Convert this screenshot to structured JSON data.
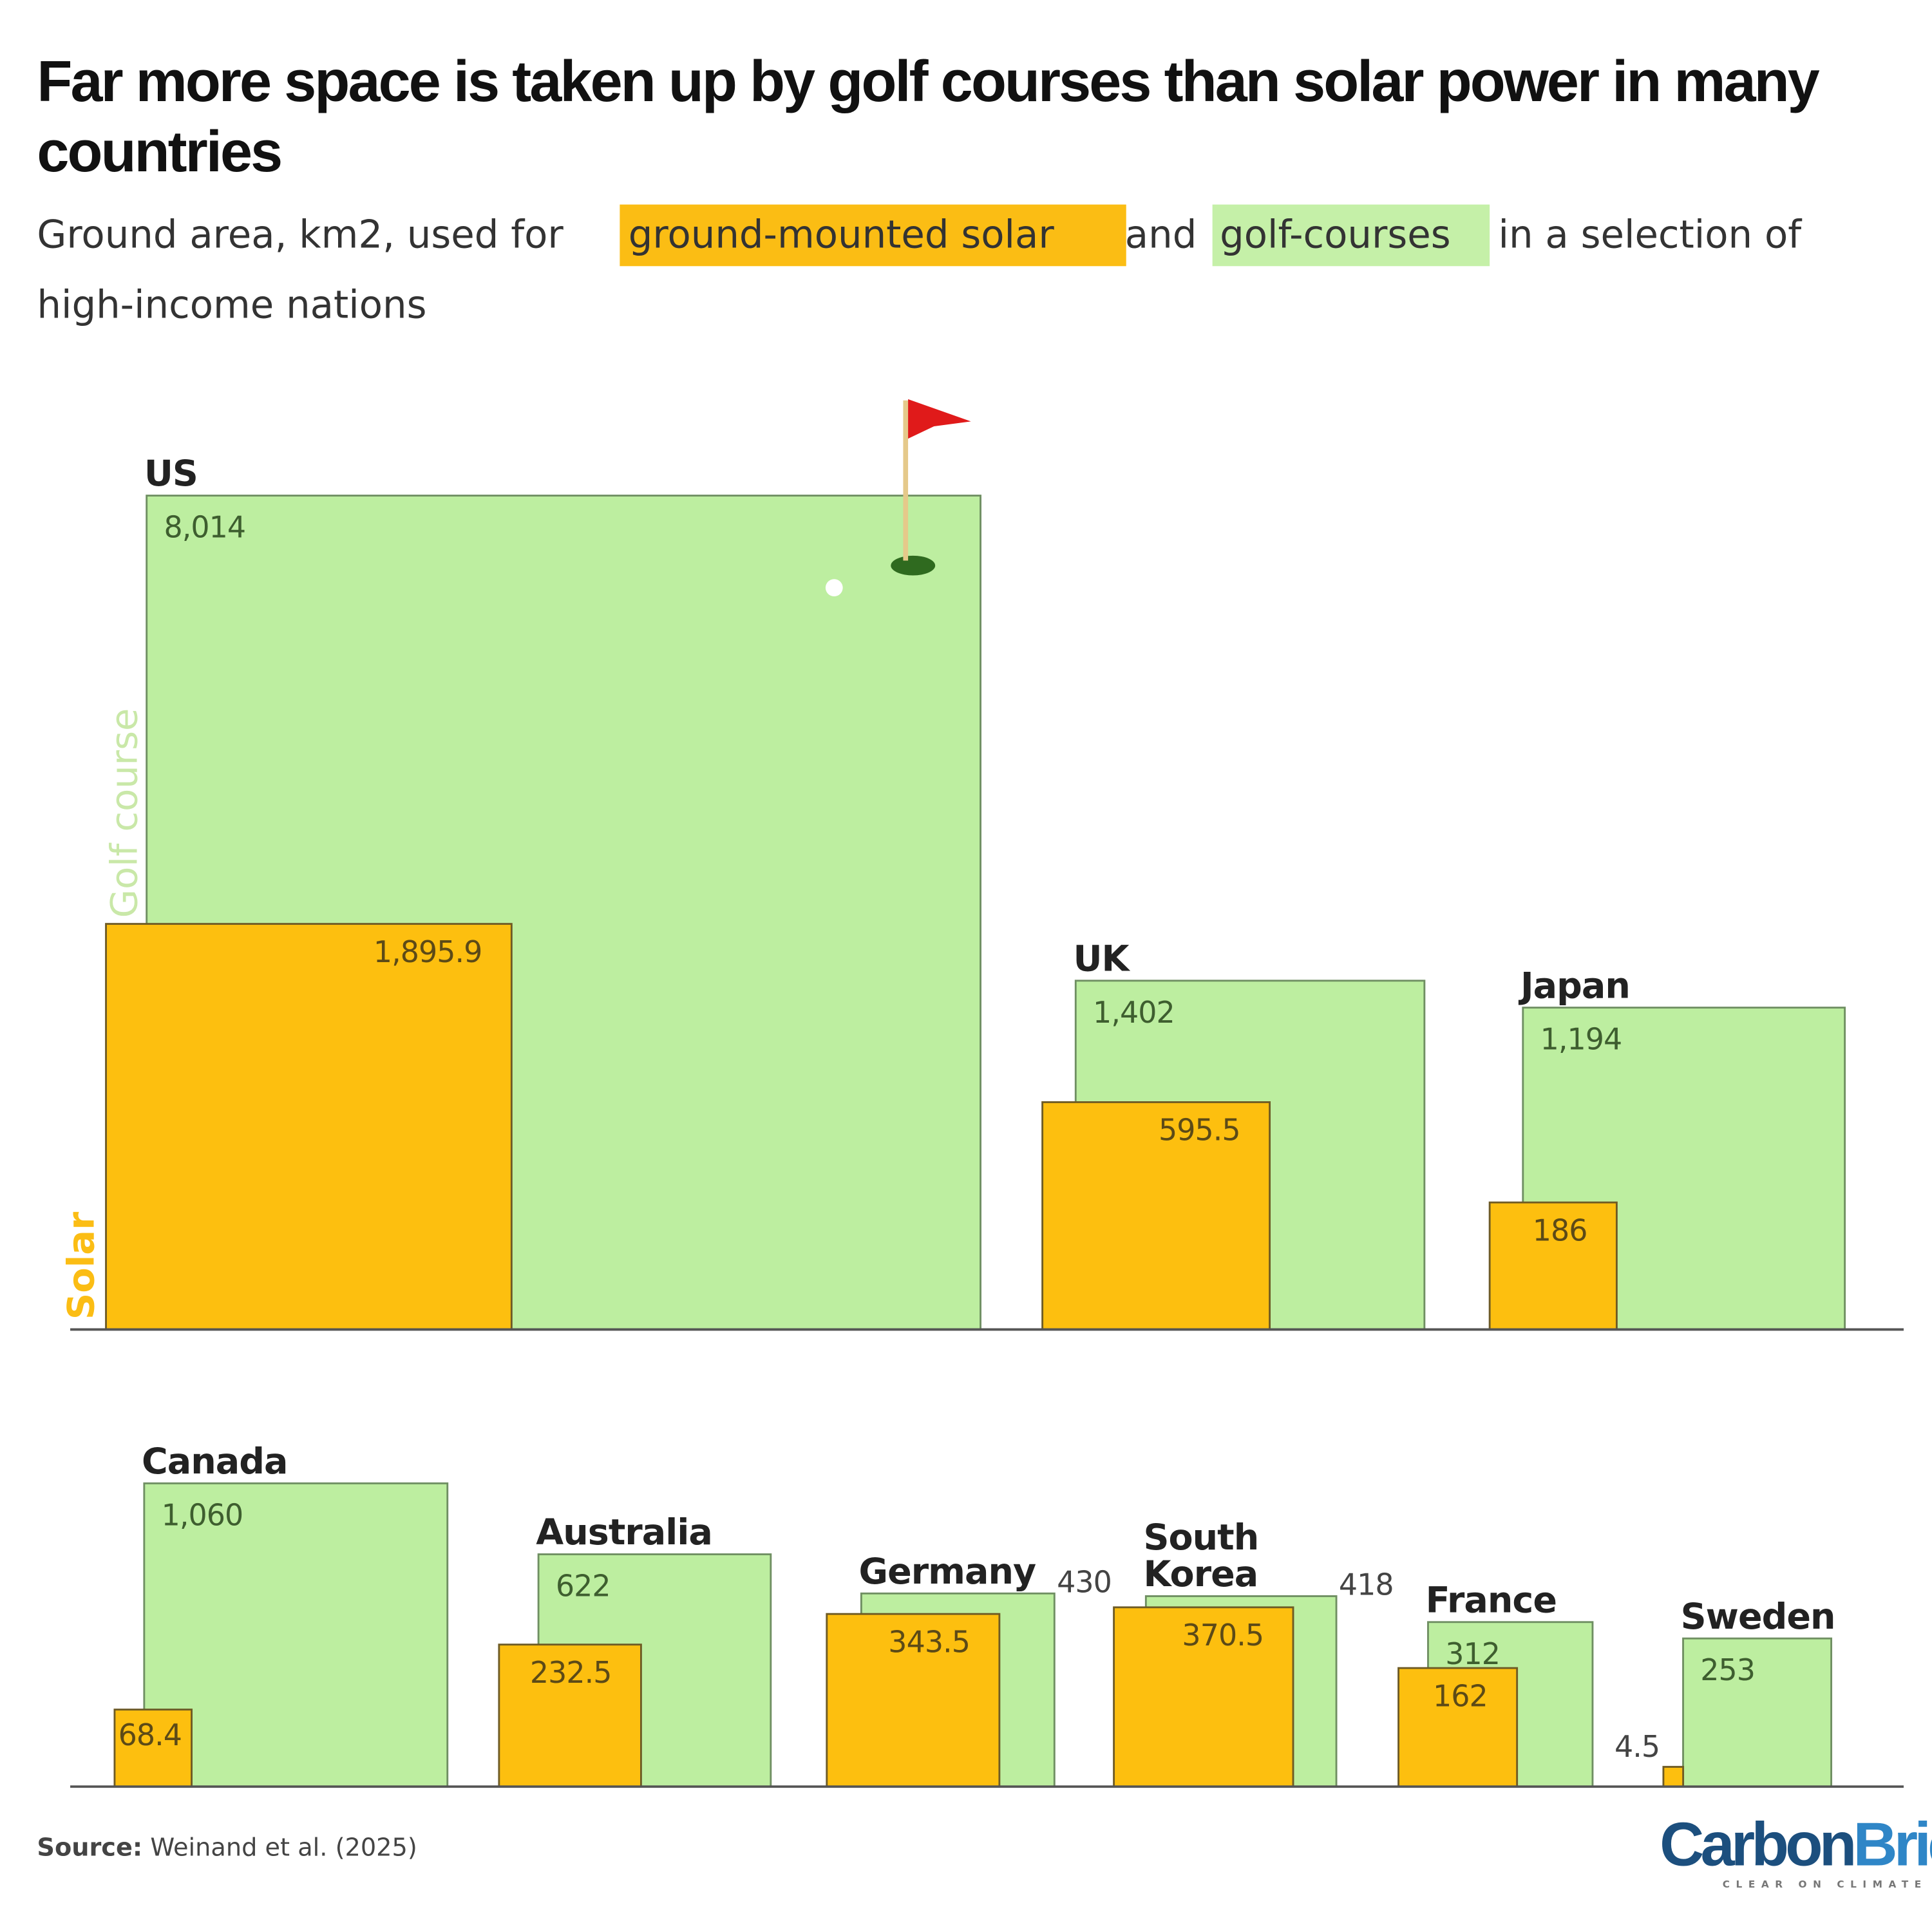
{
  "chart_data": {
    "type": "area-squares",
    "title": "Far more space is taken up by golf courses than solar power in many countries",
    "title_lines": [
      "Far more space is taken up by golf courses than solar power in many",
      "countries"
    ],
    "subtitle": {
      "part1": "Ground area, km2, used for",
      "solar_highlight": "ground-mounted solar",
      "part2": "and",
      "golf_highlight": "golf-courses",
      "part3": "in a selection of",
      "line2": "high-income nations"
    },
    "unit": "km2",
    "series_labels": {
      "golf": "Golf course",
      "solar": "Solar"
    },
    "colors": {
      "golf": "#bdeea0",
      "golf_stroke": "#6f8f62",
      "solar": "#fdbf0f",
      "solar_stroke": "#6e5b25",
      "golf_text": "#3e5e2f",
      "solar_text": "#5c4a17",
      "highlight_solar": "#fbbd14",
      "highlight_golf": "#c5f0a8"
    },
    "countries": [
      {
        "name": "US",
        "golf": 8014,
        "solar": 1895.9,
        "golf_label": "8,014",
        "solar_label": "1,895.9"
      },
      {
        "name": "UK",
        "golf": 1402,
        "solar": 595.5,
        "golf_label": "1,402",
        "solar_label": "595.5"
      },
      {
        "name": "Japan",
        "golf": 1194,
        "solar": 186,
        "golf_label": "1,194",
        "solar_label": "186"
      },
      {
        "name": "Canada",
        "golf": 1060,
        "solar": 68.4,
        "golf_label": "1,060",
        "solar_label": "68.4"
      },
      {
        "name": "Australia",
        "golf": 622,
        "solar": 232.5,
        "golf_label": "622",
        "solar_label": "232.5"
      },
      {
        "name": "Germany",
        "golf": 430,
        "solar": 343.5,
        "golf_label": "430",
        "solar_label": "343.5"
      },
      {
        "name": "South Korea",
        "name_lines": [
          "South",
          "Korea"
        ],
        "golf": 418,
        "solar": 370.5,
        "golf_label": "418",
        "solar_label": "370.5"
      },
      {
        "name": "France",
        "golf": 312,
        "solar": 162,
        "golf_label": "312",
        "solar_label": "162"
      },
      {
        "name": "Sweden",
        "golf": 253,
        "solar": 4.5,
        "golf_label": "253",
        "solar_label": "4.5"
      }
    ]
  },
  "source": {
    "label": "Source:",
    "text": "Weinand et al. (2025)"
  },
  "logo": {
    "part1": "Carbon",
    "part2": "Brief",
    "tagline": "CLEAR ON CLIMATE"
  }
}
